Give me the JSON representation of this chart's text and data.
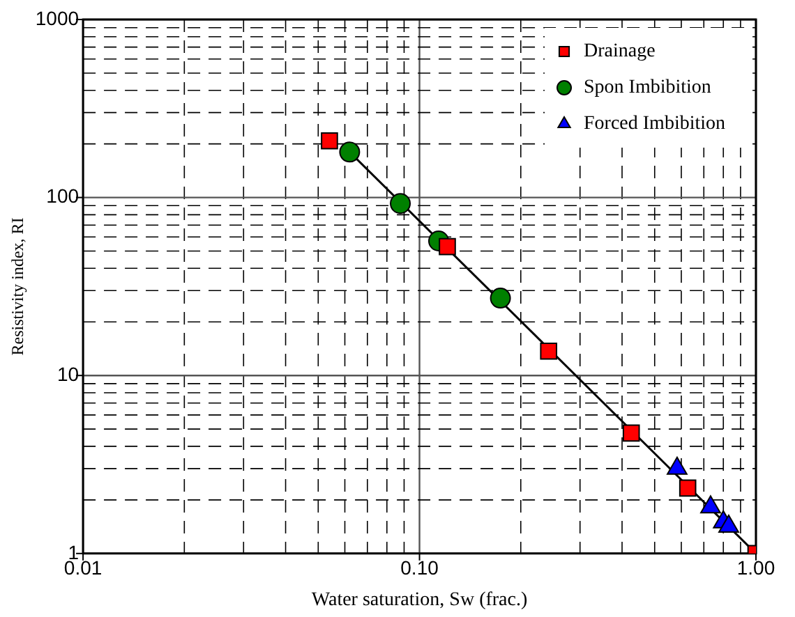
{
  "chart_data": {
    "type": "scatter",
    "xlabel": "Water saturation, Sw (frac.)",
    "ylabel": "Resistivity index, RI",
    "log": "xy",
    "grid": true,
    "legend": "top right",
    "xlim": [
      0.01,
      1
    ],
    "ylim": [
      1,
      1000
    ],
    "xticks": [
      {
        "value": 0.01,
        "label": "0.01"
      },
      {
        "value": 0.02,
        "label": null
      },
      {
        "value": 0.03,
        "label": null
      },
      {
        "value": 0.04,
        "label": null
      },
      {
        "value": 0.05,
        "label": null
      },
      {
        "value": 0.06,
        "label": null
      },
      {
        "value": 0.07,
        "label": null
      },
      {
        "value": 0.08,
        "label": null
      },
      {
        "value": 0.09,
        "label": null
      },
      {
        "value": 0.1,
        "label": "0.10"
      },
      {
        "value": 0.2,
        "label": null
      },
      {
        "value": 0.3,
        "label": null
      },
      {
        "value": 0.4,
        "label": null
      },
      {
        "value": 0.5,
        "label": null
      },
      {
        "value": 0.6,
        "label": null
      },
      {
        "value": 0.7,
        "label": null
      },
      {
        "value": 0.8,
        "label": null
      },
      {
        "value": 0.9,
        "label": null
      },
      {
        "value": 1,
        "label": "1.00"
      }
    ],
    "yticks": [
      1,
      {
        "value": 2,
        "label": null
      },
      {
        "value": 3,
        "label": null
      },
      {
        "value": 4,
        "label": null
      },
      {
        "value": 5,
        "label": null
      },
      {
        "value": 6,
        "label": null
      },
      {
        "value": 7,
        "label": null
      },
      {
        "value": 8,
        "label": null
      },
      {
        "value": 9,
        "label": null
      },
      10,
      {
        "value": 20,
        "label": null
      },
      {
        "value": 30,
        "label": null
      },
      {
        "value": 40,
        "label": null
      },
      {
        "value": 50,
        "label": null
      },
      {
        "value": 60,
        "label": null
      },
      {
        "value": 70,
        "label": null
      },
      {
        "value": 80,
        "label": null
      },
      {
        "value": 90,
        "label": null
      },
      100,
      {
        "value": 200,
        "label": null
      },
      {
        "value": 300,
        "label": null
      },
      {
        "value": 400,
        "label": null
      },
      {
        "value": 500,
        "label": null
      },
      {
        "value": 600,
        "label": null
      },
      {
        "value": 700,
        "label": null
      },
      {
        "value": 800,
        "label": null
      },
      {
        "value": 900,
        "label": null
      },
      1000
    ],
    "series": [
      {
        "type": "line",
        "color": "#000000",
        "marker": "none",
        "line_style": "solid",
        "x": [
          0.062,
          1.0
        ],
        "values": [
          180,
          1
        ]
      },
      {
        "name": "Drainage",
        "color": "#ff0000",
        "marker": "square",
        "x": [
          0.054,
          0.121,
          0.242,
          0.426,
          0.627,
          1.0
        ],
        "values": [
          208,
          53,
          13.7,
          4.75,
          2.33,
          1.0
        ]
      },
      {
        "name": "Spon Imbibition",
        "color": "#008000",
        "marker": "circle",
        "x": [
          0.062,
          0.0877,
          0.114,
          0.174
        ],
        "values": [
          180,
          92.5,
          57,
          27.2
        ]
      },
      {
        "name": "Forced Imbibition",
        "color": "#0000ff",
        "marker": "triangle",
        "x": [
          0.583,
          0.733,
          0.8,
          0.83
        ],
        "values": [
          3.0,
          1.82,
          1.5,
          1.42
        ]
      }
    ]
  }
}
